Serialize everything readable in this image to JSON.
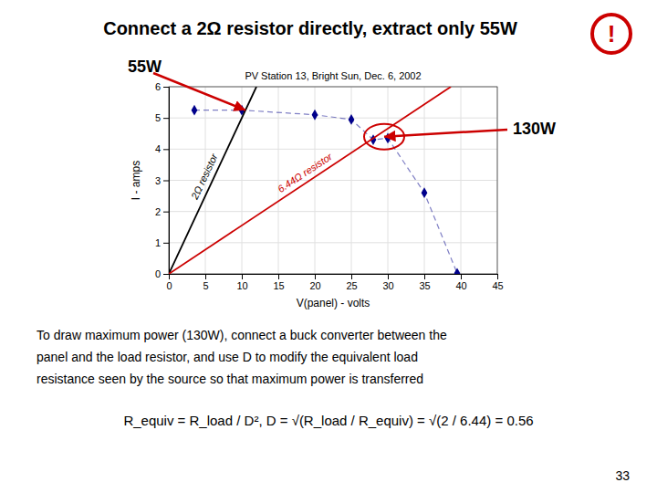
{
  "chart_data": {
    "type": "line",
    "title": "Connect a 2Ω resistor directly, extract only 55W",
    "subtitle": "PV Station 13, Bright Sun, Dec. 6, 2002",
    "x_label": "V(panel) - volts",
    "y_label": "I - amps",
    "xlim": [
      0,
      45
    ],
    "ylim": [
      0,
      6
    ],
    "xticks": [
      0,
      5,
      10,
      15,
      20,
      25,
      30,
      35,
      40,
      45
    ],
    "yticks": [
      0,
      1,
      2,
      3,
      4,
      5,
      6
    ],
    "grid": true,
    "series": [
      {
        "x": [
          3.5,
          10,
          20,
          25,
          28,
          30,
          35,
          39.5
        ],
        "values": [
          5.25,
          5.25,
          5.1,
          4.95,
          4.3,
          4.35,
          2.6,
          0.02
        ],
        "color": "#00008b",
        "marker": "diamond",
        "line_style": "dashed"
      },
      {
        "name": "2Ω resistor",
        "x": [
          0,
          12
        ],
        "values": [
          0,
          6
        ],
        "color": "#000000",
        "line_style": "solid"
      },
      {
        "name": "6.44Ω resistor",
        "x": [
          0,
          38.64
        ],
        "values": [
          0,
          6
        ],
        "color": "#cc0000",
        "line_style": "solid"
      }
    ],
    "annotations": [
      {
        "text": "55W",
        "x": 10.5,
        "y": 5.25,
        "color": "#cc0000"
      },
      {
        "text": "130W",
        "x": 29.5,
        "y": 4.4,
        "color": "#cc0000"
      },
      {
        "text": "!",
        "color": "#cc0000"
      },
      {
        "text": "To draw maximum power (130W), connect a buck converter between the"
      },
      {
        "text": "panel and the load resistor, and use D to modify the equivalent load"
      },
      {
        "text": "resistance seen by the source so that maximum power is transferred"
      },
      {
        "text": "R_equiv = R_load / D², D = √(R_load / R_equiv) = √(2 / 6.44) = 0.56"
      },
      {
        "text": "33"
      }
    ]
  }
}
